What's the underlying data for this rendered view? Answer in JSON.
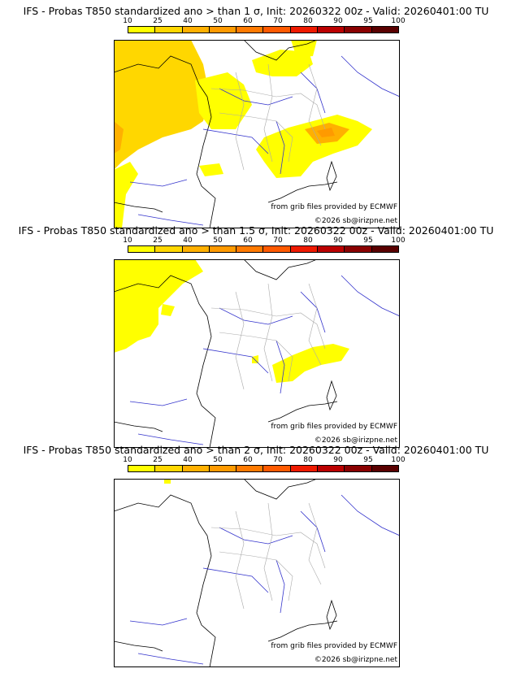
{
  "colorbar": {
    "ticks": [
      "10",
      "25",
      "40",
      "50",
      "60",
      "70",
      "80",
      "90",
      "95",
      "100"
    ],
    "colors": [
      "#ffff00",
      "#ffd700",
      "#ffb000",
      "#ff9a00",
      "#ff7a00",
      "#ff5a00",
      "#ee1a00",
      "#bb0000",
      "#8a0000",
      "#5a0000"
    ]
  },
  "panels": [
    {
      "title": "IFS - Probas T850  standardized ano > than 1 σ, Init: 20260322 00z - Valid: 20260401:00 TU",
      "credit_line1": "from grib files provided by ECMWF",
      "credit_line2": "©2026 sb@irizpne.net"
    },
    {
      "title": "IFS - Probas T850  standardized ano > than 1.5 σ, Init: 20260322 00z - Valid: 20260401:00 TU",
      "credit_line1": "from grib files provided by ECMWF",
      "credit_line2": "©2026 sb@irizpne.net"
    },
    {
      "title": "IFS - Probas T850  standardized ano > than 2 σ, Init: 20260322 00z - Valid: 20260401:00 TU",
      "credit_line1": "from grib files provided by ECMWF",
      "credit_line2": "©2026 sb@irizpne.net"
    }
  ]
}
